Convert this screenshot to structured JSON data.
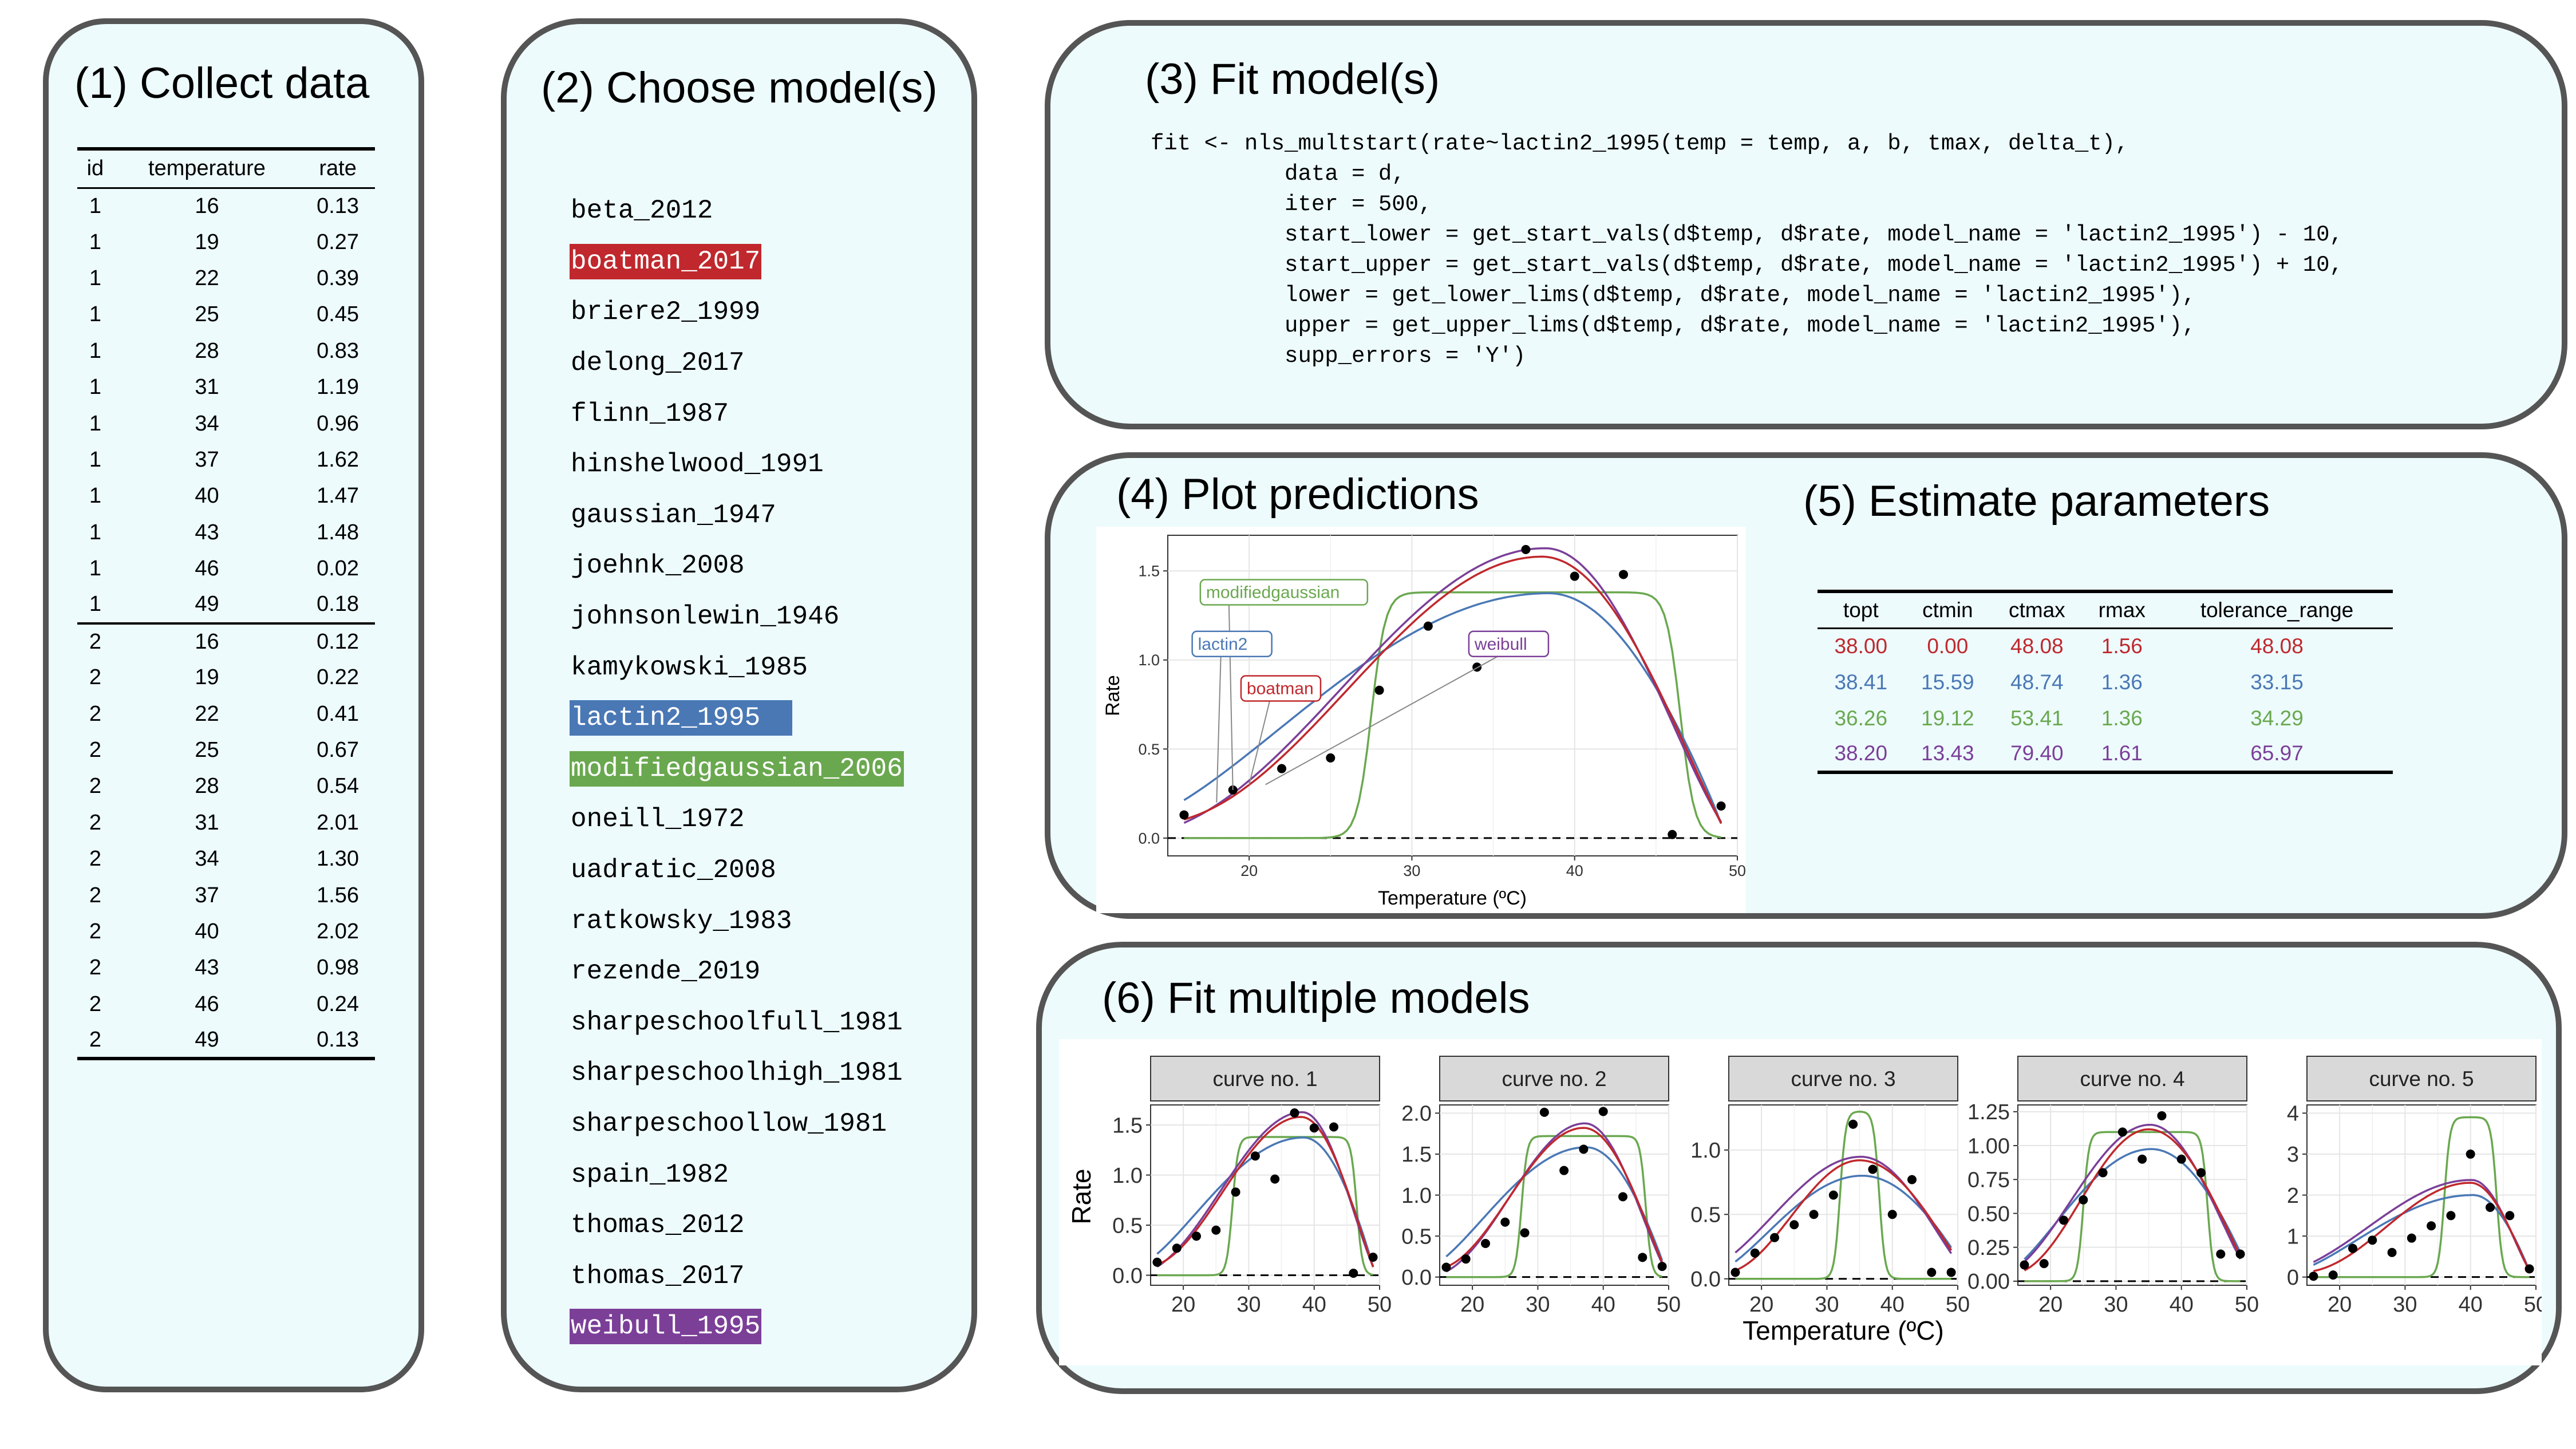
{
  "panel1": {
    "title": "(1) Collect data",
    "headers": [
      "id",
      "temperature",
      "rate"
    ],
    "rows": [
      [
        "1",
        "16",
        "0.13"
      ],
      [
        "1",
        "19",
        "0.27"
      ],
      [
        "1",
        "22",
        "0.39"
      ],
      [
        "1",
        "25",
        "0.45"
      ],
      [
        "1",
        "28",
        "0.83"
      ],
      [
        "1",
        "31",
        "1.19"
      ],
      [
        "1",
        "34",
        "0.96"
      ],
      [
        "1",
        "37",
        "1.62"
      ],
      [
        "1",
        "40",
        "1.47"
      ],
      [
        "1",
        "43",
        "1.48"
      ],
      [
        "1",
        "46",
        "0.02"
      ],
      [
        "1",
        "49",
        "0.18"
      ],
      [
        "2",
        "16",
        "0.12"
      ],
      [
        "2",
        "19",
        "0.22"
      ],
      [
        "2",
        "22",
        "0.41"
      ],
      [
        "2",
        "25",
        "0.67"
      ],
      [
        "2",
        "28",
        "0.54"
      ],
      [
        "2",
        "31",
        "2.01"
      ],
      [
        "2",
        "34",
        "1.30"
      ],
      [
        "2",
        "37",
        "1.56"
      ],
      [
        "2",
        "40",
        "2.02"
      ],
      [
        "2",
        "43",
        "0.98"
      ],
      [
        "2",
        "46",
        "0.24"
      ],
      [
        "2",
        "49",
        "0.13"
      ]
    ]
  },
  "panel2": {
    "title": "(2) Choose model(s)",
    "models": [
      {
        "name": "beta_2012",
        "highlight": ""
      },
      {
        "name": "boatman_2017",
        "highlight": "#c0282d"
      },
      {
        "name": "briere2_1999",
        "highlight": ""
      },
      {
        "name": "delong_2017",
        "highlight": ""
      },
      {
        "name": "flinn_1987",
        "highlight": ""
      },
      {
        "name": "hinshelwood_1991",
        "highlight": ""
      },
      {
        "name": "gaussian_1947",
        "highlight": ""
      },
      {
        "name": "joehnk_2008",
        "highlight": ""
      },
      {
        "name": "johnsonlewin_1946",
        "highlight": ""
      },
      {
        "name": "kamykowski_1985",
        "highlight": ""
      },
      {
        "name": "lactin2_1995",
        "highlight": "#4a78b5"
      },
      {
        "name": "modifiedgaussian_2006",
        "highlight": "#6aa84f"
      },
      {
        "name": "oneill_1972",
        "highlight": ""
      },
      {
        "name": "uadratic_2008",
        "highlight": ""
      },
      {
        "name": "ratkowsky_1983",
        "highlight": ""
      },
      {
        "name": "rezende_2019",
        "highlight": ""
      },
      {
        "name": "sharpeschoolfull_1981",
        "highlight": ""
      },
      {
        "name": "sharpeschoolhigh_1981",
        "highlight": ""
      },
      {
        "name": "sharpeschoollow_1981",
        "highlight": ""
      },
      {
        "name": "spain_1982",
        "highlight": ""
      },
      {
        "name": "thomas_2012",
        "highlight": ""
      },
      {
        "name": "thomas_2017",
        "highlight": ""
      },
      {
        "name": "weibull_1995",
        "highlight": "#7b3f98"
      }
    ]
  },
  "panel3": {
    "title": "(3) Fit model(s)",
    "code": [
      "fit <- nls_multstart(rate~lactin2_1995(temp = temp, a, b, tmax, delta_t),",
      "          data = d,",
      "          iter = 500,",
      "          start_lower = get_start_vals(d$temp, d$rate, model_name = 'lactin2_1995') - 10,",
      "          start_upper = get_start_vals(d$temp, d$rate, model_name = 'lactin2_1995') + 10,",
      "          lower = get_lower_lims(d$temp, d$rate, model_name = 'lactin2_1995'),",
      "          upper = get_upper_lims(d$temp, d$rate, model_name = 'lactin2_1995'),",
      "          supp_errors = 'Y')"
    ]
  },
  "panel4": {
    "title": "(4) Plot predictions"
  },
  "panel5": {
    "title": "(5) Estimate parameters",
    "headers": [
      "topt",
      "ctmin",
      "ctmax",
      "rmax",
      "tolerance_range"
    ],
    "rows": [
      {
        "values": [
          "38.00",
          "0.00",
          "48.08",
          "1.56",
          "48.08"
        ],
        "color": "#c0282d"
      },
      {
        "values": [
          "38.41",
          "15.59",
          "48.74",
          "1.36",
          "33.15"
        ],
        "color": "#4a78b5"
      },
      {
        "values": [
          "36.26",
          "19.12",
          "53.41",
          "1.36",
          "34.29"
        ],
        "color": "#6aa84f"
      },
      {
        "values": [
          "38.20",
          "13.43",
          "79.40",
          "1.61",
          "65.97"
        ],
        "color": "#7b3f98"
      }
    ]
  },
  "panel6": {
    "title": "(6) Fit multiple models"
  },
  "colors": {
    "boatman": "#c0282d",
    "lactin2": "#4a78b5",
    "modifiedgaussian": "#6aa84f",
    "weibull": "#7b3f98"
  },
  "chart_data": [
    {
      "type": "line",
      "xlabel": "Temperature (ºC)",
      "ylabel": "Rate",
      "xlim": [
        15,
        50
      ],
      "ylim": [
        -0.1,
        1.7
      ],
      "xticks": [
        20,
        30,
        40,
        50
      ],
      "yticks": [
        0.0,
        0.5,
        1.0,
        1.5
      ],
      "points": {
        "x": [
          16,
          19,
          22,
          25,
          28,
          31,
          34,
          37,
          40,
          43,
          46,
          49
        ],
        "y": [
          0.13,
          0.27,
          0.39,
          0.45,
          0.83,
          1.19,
          0.96,
          1.62,
          1.47,
          1.48,
          0.02,
          0.18
        ]
      },
      "series": [
        {
          "name": "modifiedgaussian",
          "color": "#6aa84f"
        },
        {
          "name": "lactin2",
          "color": "#4a78b5"
        },
        {
          "name": "weibull",
          "color": "#7b3f98"
        },
        {
          "name": "boatman",
          "color": "#c0282d"
        }
      ],
      "labels": [
        {
          "text": "modifiedgaussian",
          "color": "#6aa84f",
          "at": [
            17,
            1.38
          ],
          "target": [
            19,
            0.27
          ]
        },
        {
          "text": "lactin2",
          "color": "#4a78b5",
          "at": [
            16.5,
            1.09
          ],
          "target": [
            18,
            0.2
          ]
        },
        {
          "text": "weibull",
          "color": "#7b3f98",
          "at": [
            33.5,
            1.09
          ],
          "target": [
            21,
            0.3
          ]
        },
        {
          "text": "boatman",
          "color": "#c0282d",
          "at": [
            19.5,
            0.84
          ],
          "target": [
            20,
            0.3
          ]
        }
      ],
      "zero_line": "dashed"
    },
    {
      "type": "line",
      "xlabel": "Temperature (ºC)",
      "ylabel": "Rate",
      "facets": [
        {
          "strip": "curve no. 1",
          "ylim": [
            -0.1,
            1.7
          ],
          "yticks": [
            0.0,
            0.5,
            1.0,
            1.5
          ],
          "yticklabels": [
            "0.0",
            "0.5",
            "1.0",
            "1.5"
          ],
          "points": {
            "x": [
              16,
              19,
              22,
              25,
              28,
              31,
              34,
              37,
              40,
              43,
              46,
              49
            ],
            "y": [
              0.13,
              0.27,
              0.39,
              0.45,
              0.83,
              1.19,
              0.96,
              1.62,
              1.47,
              1.48,
              0.02,
              0.18
            ]
          },
          "curves": {
            "A": 1.58,
            "topt": 38,
            "ctmin": 10,
            "ctmax": 49.5,
            "gh": 1.38,
            "g1": 27.5,
            "g2": 46.5
          }
        },
        {
          "strip": "curve no. 2",
          "ylim": [
            -0.1,
            2.1
          ],
          "yticks": [
            0.0,
            0.5,
            1.0,
            1.5,
            2.0
          ],
          "yticklabels": [
            "0.0",
            "0.5",
            "1.0",
            "1.5",
            "2.0"
          ],
          "points": {
            "x": [
              16,
              19,
              22,
              25,
              28,
              31,
              34,
              37,
              40,
              43,
              46,
              49
            ],
            "y": [
              0.12,
              0.22,
              0.41,
              0.67,
              0.54,
              2.01,
              1.3,
              1.56,
              2.02,
              0.98,
              0.24,
              0.13
            ]
          },
          "curves": {
            "A": 1.82,
            "topt": 37,
            "ctmin": 11,
            "ctmax": 50,
            "gh": 1.72,
            "g1": 27.5,
            "g2": 46.5
          }
        },
        {
          "strip": "curve no. 3",
          "ylim": [
            -0.05,
            1.35
          ],
          "yticks": [
            0.0,
            0.5,
            1.0
          ],
          "yticklabels": [
            "0.0",
            "0.5",
            "1.0"
          ],
          "points": {
            "x": [
              16,
              19,
              22,
              25,
              28,
              31,
              34,
              37,
              40,
              43,
              46,
              49
            ],
            "y": [
              0.05,
              0.2,
              0.32,
              0.42,
              0.5,
              0.65,
              1.2,
              0.85,
              0.5,
              0.77,
              0.05,
              0.05
            ]
          },
          "curves": {
            "A": 0.92,
            "topt": 35,
            "ctmin": 5,
            "ctmax": 52,
            "gh": 1.3,
            "g1": 32,
            "g2": 38
          }
        },
        {
          "strip": "curve no. 4",
          "ylim": [
            -0.03,
            1.3
          ],
          "yticks": [
            0.0,
            0.25,
            0.5,
            0.75,
            1.0,
            1.25
          ],
          "yticklabels": [
            "0.00",
            "0.25",
            "0.50",
            "0.75",
            "1.00",
            "1.25"
          ],
          "points": {
            "x": [
              16,
              19,
              22,
              25,
              28,
              31,
              34,
              37,
              40,
              43,
              46,
              49
            ],
            "y": [
              0.12,
              0.13,
              0.45,
              0.6,
              0.8,
              1.1,
              0.9,
              1.22,
              0.9,
              0.8,
              0.2,
              0.2
            ]
          },
          "curves": {
            "A": 1.12,
            "topt": 35,
            "ctmin": 8,
            "ctmax": 51,
            "gh": 1.1,
            "g1": 25,
            "g2": 44
          }
        },
        {
          "strip": "curve no. 5",
          "ylim": [
            -0.2,
            4.2
          ],
          "yticks": [
            0,
            1,
            2,
            3,
            4
          ],
          "yticklabels": [
            "0",
            "1",
            "2",
            "3",
            "4"
          ],
          "points": {
            "x": [
              16,
              19,
              22,
              25,
              28,
              31,
              34,
              37,
              40,
              43,
              46,
              49
            ],
            "y": [
              0.02,
              0.05,
              0.7,
              0.9,
              0.6,
              0.95,
              1.25,
              1.5,
              3.0,
              1.7,
              1.5,
              0.2
            ]
          },
          "curves": {
            "A": 2.3,
            "topt": 40,
            "ctmin": 5,
            "ctmax": 49.5,
            "gh": 3.9,
            "g1": 36,
            "g2": 44
          }
        }
      ],
      "xlim": [
        15,
        50
      ],
      "xticks": [
        20,
        30,
        40,
        50
      ]
    }
  ]
}
